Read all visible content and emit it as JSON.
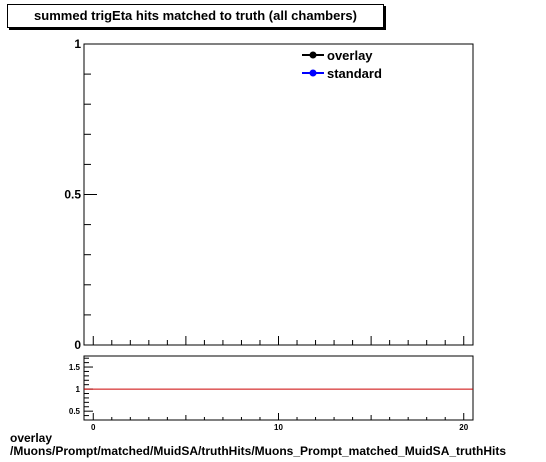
{
  "chart_data": [
    {
      "type": "line",
      "title": "summed trigEta hits matched to truth (all chambers)",
      "xlim": [
        -0.5,
        20.5
      ],
      "ylim": [
        0,
        1
      ],
      "yticks": [
        {
          "value": 0,
          "label": "0"
        },
        {
          "value": 0.5,
          "label": "0.5"
        },
        {
          "value": 1,
          "label": "1"
        }
      ],
      "series": [
        {
          "name": "overlay",
          "color": "#000000",
          "values": []
        },
        {
          "name": "standard",
          "color": "#0000ff",
          "values": []
        }
      ],
      "legend": "top-right",
      "grid": false
    },
    {
      "type": "line",
      "xlim": [
        -0.5,
        20.5
      ],
      "ylim": [
        0.3,
        1.75
      ],
      "xticks": [
        {
          "value": 0,
          "label": "0"
        },
        {
          "value": 10,
          "label": "10"
        },
        {
          "value": 20,
          "label": "20"
        }
      ],
      "yticks": [
        {
          "value": 0.5,
          "label": "0.5"
        },
        {
          "value": 1,
          "label": "1"
        },
        {
          "value": 1.5,
          "label": "1.5"
        }
      ],
      "reference_line": {
        "y": 1,
        "color": "#cc0000"
      },
      "grid": false
    }
  ],
  "footer": {
    "line1": "overlay",
    "line2": "/Muons/Prompt/matched/MuidSA/truthHits/Muons_Prompt_matched_MuidSA_truthHits"
  }
}
